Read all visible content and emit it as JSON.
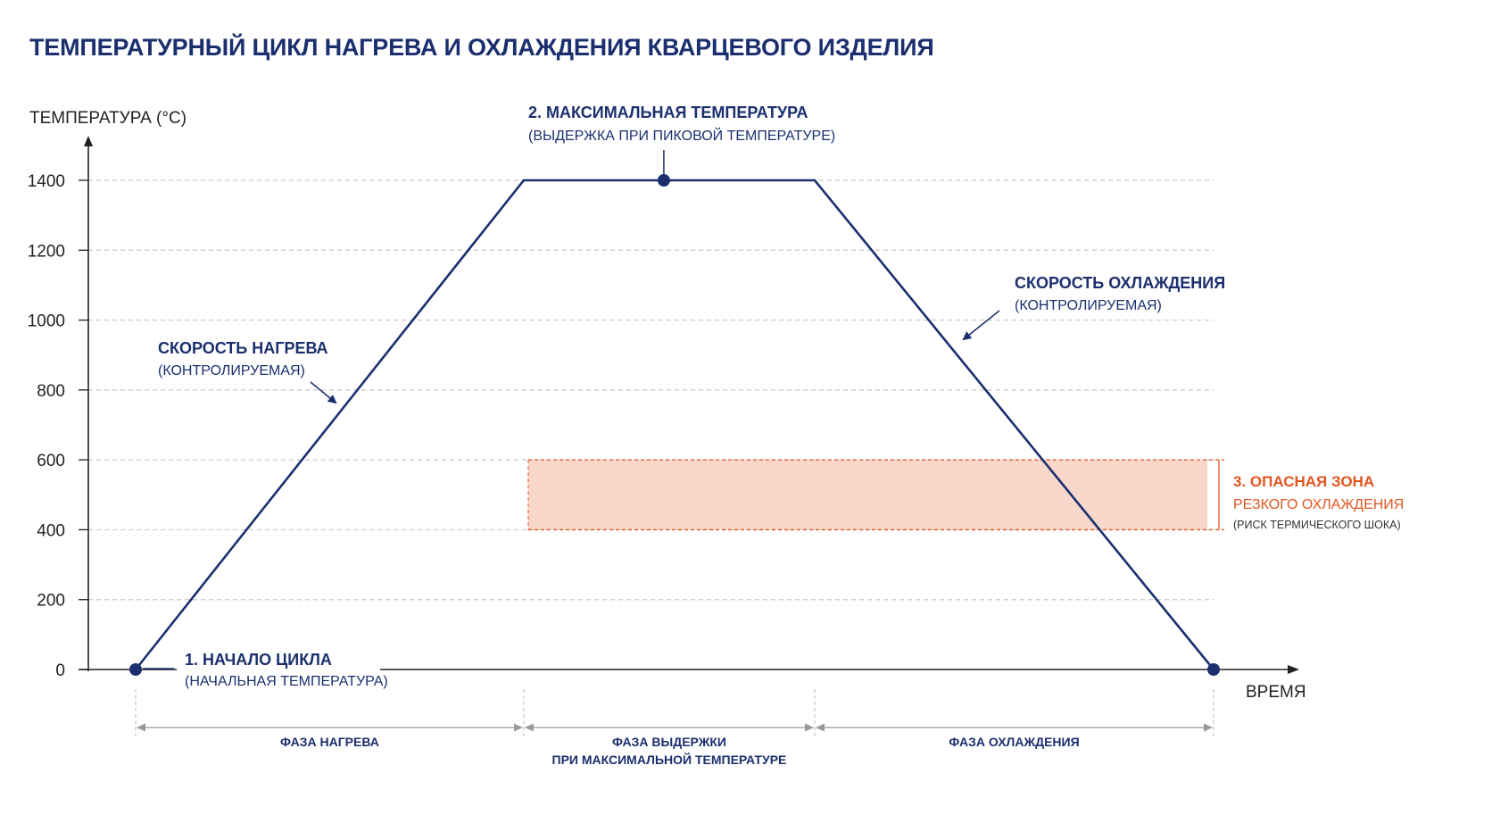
{
  "chart_data": {
    "type": "line",
    "title": "ТЕМПЕРАТУРНЫЙ ЦИКЛ НАГРЕВА И ОХЛАЖДЕНИЯ КВАРЦЕВОГО ИЗДЕЛИЯ",
    "ylabel": "ТЕМПЕРАТУРА (°C)",
    "xlabel": "ВРЕМЯ",
    "ylim": [
      0,
      1400
    ],
    "yticks": [
      0,
      200,
      400,
      600,
      800,
      1000,
      1200,
      1400
    ],
    "grid": true,
    "series": [
      {
        "points": [
          {
            "x": 0,
            "y": 0
          },
          {
            "x": 36,
            "y": 1400
          },
          {
            "x": 63,
            "y": 1400
          },
          {
            "x": 100,
            "y": 0
          }
        ]
      }
    ],
    "markers": [
      {
        "x": 0,
        "y": 0
      },
      {
        "x": 49,
        "y": 1400
      },
      {
        "x": 100,
        "y": 0
      }
    ],
    "annotations": {
      "start": {
        "title": "1. НАЧАЛО ЦИКЛА",
        "subtitle": "(НАЧАЛЬНАЯ ТЕМПЕРАТУРА)"
      },
      "max": {
        "title": "2. МАКСИМАЛЬНАЯ ТЕМПЕРАТУРА",
        "subtitle": "(ВЫДЕРЖКА ПРИ ПИКОВОЙ ТЕМПЕРАТУРЕ)"
      },
      "heating_rate": {
        "title": "СКОРОСТЬ НАГРЕВА",
        "subtitle": "(КОНТРОЛИРУЕМАЯ)"
      },
      "cooling_rate": {
        "title": "СКОРОСТЬ ОХЛАЖДЕНИЯ",
        "subtitle": "(КОНТРОЛИРУЕМАЯ)"
      },
      "danger": {
        "line1": "3. ОПАСНАЯ ЗОНА",
        "line2": "РЕЗКОГО ОХЛАЖДЕНИЯ",
        "line3": "(РИСК ТЕРМИЧЕСКОГО ШОКА)",
        "y_range": [
          400,
          600
        ],
        "color": "#e2561f",
        "fill": "#f9d7cb"
      }
    },
    "phases": [
      {
        "line1": "ФАЗА НАГРЕВА",
        "line2": "",
        "x_range": [
          0,
          36
        ]
      },
      {
        "line1": "ФАЗА ВЫДЕРЖКИ",
        "line2": "ПРИ МАКСИМАЛЬНОЙ ТЕМПЕРАТУРЕ",
        "x_range": [
          36,
          63
        ]
      },
      {
        "line1": "ФАЗА ОХЛАЖДЕНИЯ",
        "line2": "",
        "x_range": [
          63,
          100
        ]
      }
    ],
    "colors": {
      "line": "#1b2f6e",
      "grid": "#c8c8c8",
      "axis": "#222222"
    }
  }
}
